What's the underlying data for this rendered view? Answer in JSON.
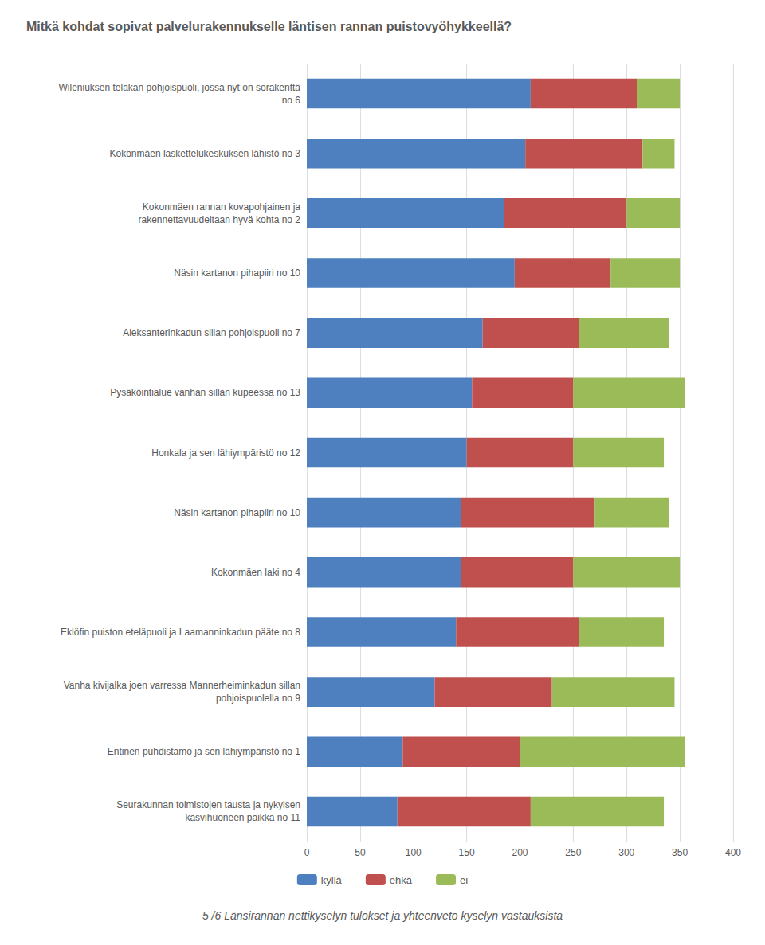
{
  "chart_data": {
    "type": "bar",
    "orientation": "horizontal",
    "stacked": true,
    "title": "Mitkä kohdat sopivat palvelurakennukselle läntisen rannan puistovyöhykkeellä?",
    "subtitle": "5 /6 Länsirannan nettikyselyn tulokset ja yhteenveto kyselyn vastauksista",
    "categories": [
      "Wileniuksen telakan pohjoispuoli, jossa nyt on sorakenttä\nno 6",
      "Kokonmäen laskettelukeskuksen lähistö no 3",
      "Kokonmäen rannan kovapohjainen ja\nrakennettavuudeltaan hyvä kohta no 2",
      "Näsin kartanon pihapiiri no 10",
      "Aleksanterinkadun sillan pohjoispuoli no 7",
      "Pysäköintialue vanhan sillan kupeessa no 13",
      "Honkala ja sen lähiympäristö no 12",
      "Näsin kartanon pihapiiri no 10",
      "Kokonmäen laki no 4",
      "Eklöfin puiston eteläpuoli ja Laamanninkadun pääte no 8",
      "Vanha kivijalka joen varressa Mannerheiminkadun sillan\npohjoispuolella no 9",
      "Entinen puhdistamo ja sen lähiympäristö no 1",
      "Seurakunnan toimistojen tausta ja nykyisen\nkasvihuoneen paikka no 11"
    ],
    "series": [
      {
        "name": "kyllä",
        "color": "#4e7fbf",
        "values": [
          210,
          205,
          185,
          195,
          165,
          155,
          150,
          145,
          145,
          140,
          120,
          90,
          85
        ]
      },
      {
        "name": "ehkä",
        "color": "#c0504d",
        "values": [
          100,
          110,
          115,
          90,
          90,
          95,
          100,
          125,
          105,
          115,
          110,
          110,
          125
        ]
      },
      {
        "name": "ei",
        "color": "#9bbb59",
        "values": [
          40,
          30,
          50,
          65,
          85,
          105,
          85,
          70,
          100,
          80,
          115,
          155,
          125
        ]
      }
    ],
    "xlim": [
      0,
      400
    ],
    "xticks": [
      0,
      50,
      100,
      150,
      200,
      250,
      300,
      350,
      400
    ],
    "grid": true,
    "legend": "bottom"
  }
}
